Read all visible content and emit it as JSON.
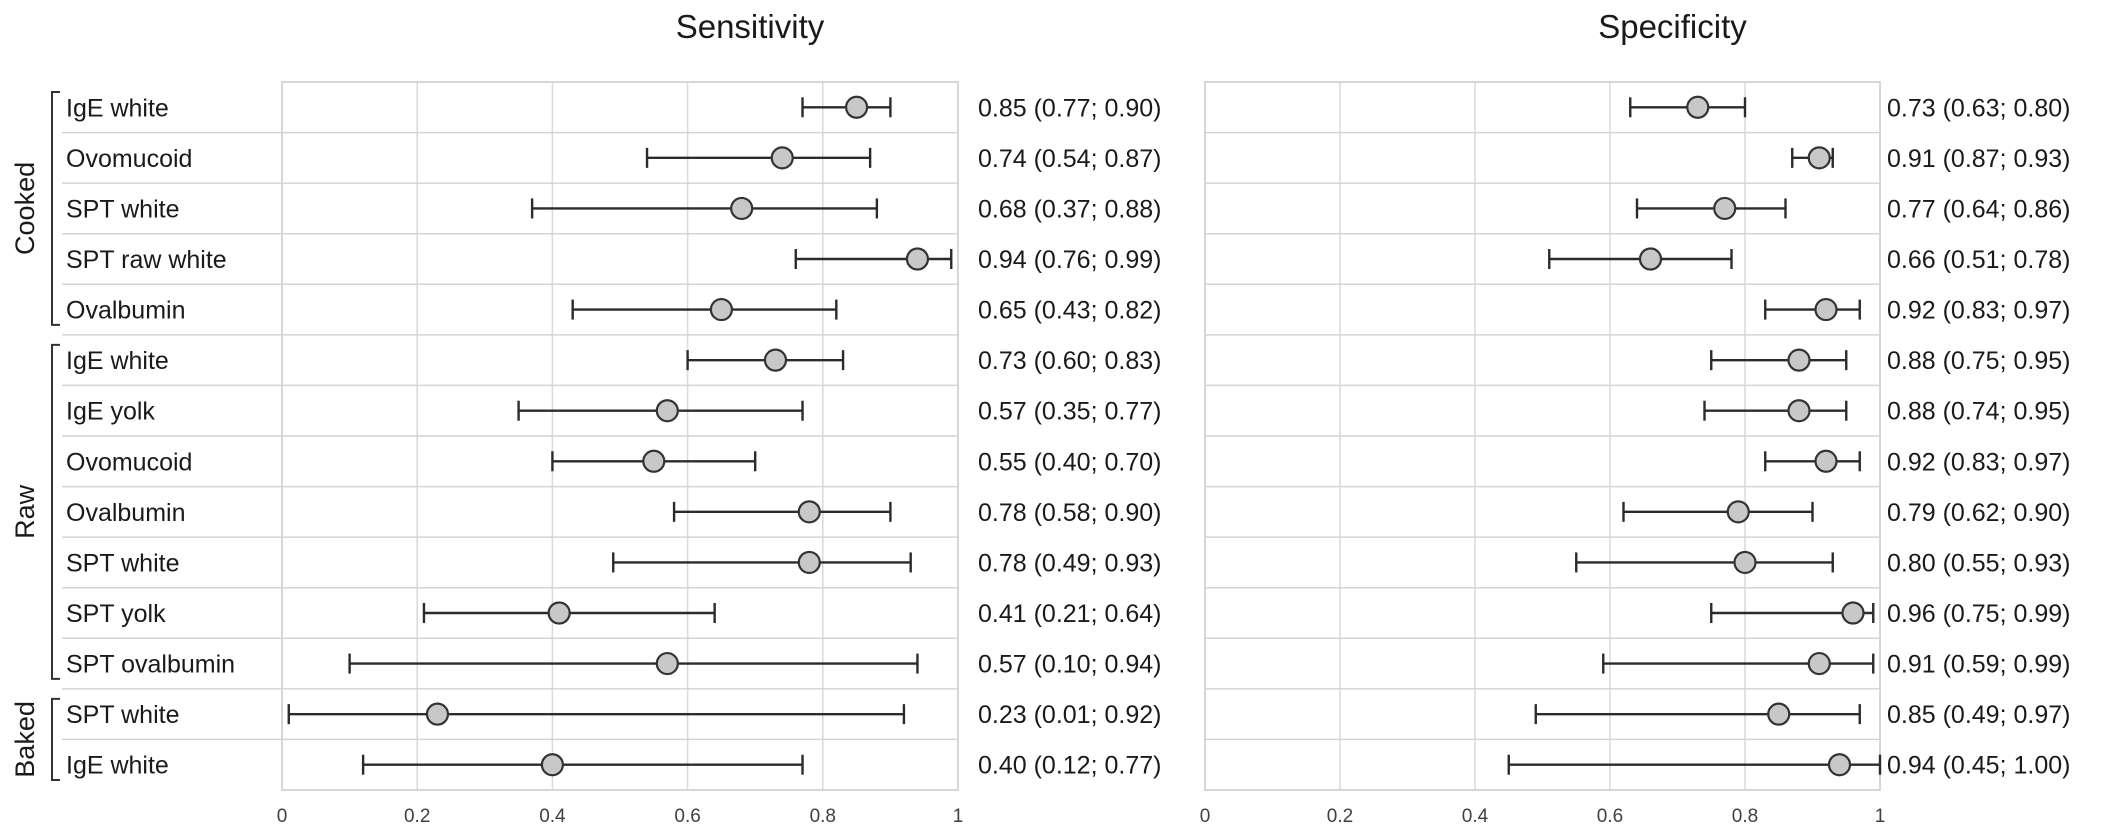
{
  "chart_data": {
    "type": "forest",
    "groups": [
      {
        "label": "Cooked",
        "start": 0,
        "end": 4
      },
      {
        "label": "Raw",
        "start": 5,
        "end": 11
      },
      {
        "label": "Baked",
        "start": 12,
        "end": 13
      }
    ],
    "rows": [
      "IgE white",
      "Ovomucoid",
      "SPT white",
      "SPT raw white",
      "Ovalbumin",
      "IgE white",
      "IgE yolk",
      "Ovomucoid",
      "Ovalbumin",
      "SPT white",
      "SPT yolk",
      "SPT ovalbumin",
      "SPT white",
      "IgE white"
    ],
    "panels": [
      {
        "title": "Sensitivity",
        "xlim": [
          0,
          1
        ],
        "ticks": [
          "0",
          "0.2",
          "0.4",
          "0.6",
          "0.8",
          "1"
        ],
        "grid": true,
        "estimates": [
          0.85,
          0.74,
          0.68,
          0.94,
          0.65,
          0.73,
          0.57,
          0.55,
          0.78,
          0.78,
          0.41,
          0.57,
          0.23,
          0.4
        ],
        "lower": [
          0.77,
          0.54,
          0.37,
          0.76,
          0.43,
          0.6,
          0.35,
          0.4,
          0.58,
          0.49,
          0.21,
          0.1,
          0.01,
          0.12
        ],
        "upper": [
          0.9,
          0.87,
          0.88,
          0.99,
          0.82,
          0.83,
          0.77,
          0.7,
          0.9,
          0.93,
          0.64,
          0.94,
          0.92,
          0.77
        ],
        "labels": [
          "0.85 (0.77; 0.90)",
          "0.74 (0.54; 0.87)",
          "0.68 (0.37; 0.88)",
          "0.94 (0.76; 0.99)",
          "0.65 (0.43; 0.82)",
          "0.73 (0.60; 0.83)",
          "0.57 (0.35; 0.77)",
          "0.55 (0.40; 0.70)",
          "0.78 (0.58; 0.90)",
          "0.78 (0.49; 0.93)",
          "0.41 (0.21; 0.64)",
          "0.57 (0.10; 0.94)",
          "0.23 (0.01; 0.92)",
          "0.40 (0.12; 0.77)"
        ]
      },
      {
        "title": "Specificity",
        "xlim": [
          0,
          1
        ],
        "ticks": [
          "0",
          "0.2",
          "0.4",
          "0.6",
          "0.8",
          "1"
        ],
        "grid": true,
        "estimates": [
          0.73,
          0.91,
          0.77,
          0.66,
          0.92,
          0.88,
          0.88,
          0.92,
          0.79,
          0.8,
          0.96,
          0.91,
          0.85,
          0.94
        ],
        "lower": [
          0.63,
          0.87,
          0.64,
          0.51,
          0.83,
          0.75,
          0.74,
          0.83,
          0.62,
          0.55,
          0.75,
          0.59,
          0.49,
          0.45
        ],
        "upper": [
          0.8,
          0.93,
          0.86,
          0.78,
          0.97,
          0.95,
          0.95,
          0.97,
          0.9,
          0.93,
          0.99,
          0.99,
          0.97,
          1.0
        ],
        "labels": [
          "0.73 (0.63; 0.80)",
          "0.91 (0.87; 0.93)",
          "0.77 (0.64; 0.86)",
          "0.66 (0.51; 0.78)",
          "0.92 (0.83; 0.97)",
          "0.88 (0.75; 0.95)",
          "0.88 (0.74; 0.95)",
          "0.92 (0.83; 0.97)",
          "0.79 (0.62; 0.90)",
          "0.80 (0.55; 0.93)",
          "0.96 (0.75; 0.99)",
          "0.91 (0.59; 0.99)",
          "0.85 (0.49; 0.97)",
          "0.94 (0.45; 1.00)"
        ]
      }
    ],
    "colors": {
      "marker_fill": "#c8c8c8",
      "marker_stroke": "#333333",
      "ci_line": "#2b2b2b",
      "grid": "#d9d9d9",
      "frame": "#c9c9c9",
      "row_divider": "#d4d4d4"
    }
  }
}
